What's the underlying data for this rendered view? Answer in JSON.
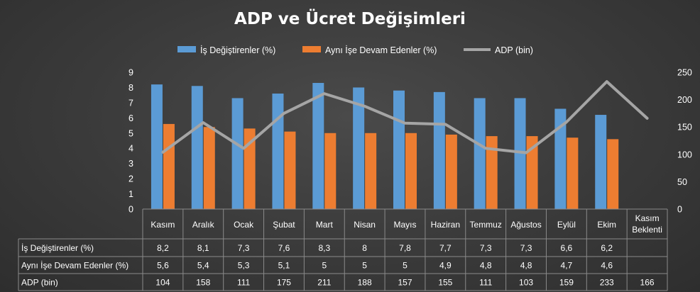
{
  "chart_data": {
    "type": "bar",
    "title": "ADP ve Ücret Değişimleri",
    "categories": [
      "Kasım",
      "Aralık",
      "Ocak",
      "Şubat",
      "Mart",
      "Nisan",
      "Mayıs",
      "Haziran",
      "Temmuz",
      "Ağustos",
      "Eylül",
      "Ekim",
      "Kasım Beklenti"
    ],
    "series": [
      {
        "name": "İş Değiştirenler (%)",
        "type": "bar",
        "axis": "left",
        "color": "#5b9bd5",
        "values": [
          8.2,
          8.1,
          7.3,
          7.6,
          8.3,
          8,
          7.8,
          7.7,
          7.3,
          7.3,
          6.6,
          6.2,
          null
        ],
        "labels": [
          "8,2",
          "8,1",
          "7,3",
          "7,6",
          "8,3",
          "8",
          "7,8",
          "7,7",
          "7,3",
          "7,3",
          "6,6",
          "6,2",
          ""
        ]
      },
      {
        "name": "Aynı İşe Devam Edenler (%)",
        "type": "bar",
        "axis": "left",
        "color": "#ed7d31",
        "values": [
          5.6,
          5.4,
          5.3,
          5.1,
          5,
          5,
          5,
          4.9,
          4.8,
          4.8,
          4.7,
          4.6,
          null
        ],
        "labels": [
          "5,6",
          "5,4",
          "5,3",
          "5,1",
          "5",
          "5",
          "5",
          "4,9",
          "4,8",
          "4,8",
          "4,7",
          "4,6",
          ""
        ]
      },
      {
        "name": "ADP (bin)",
        "type": "line",
        "axis": "right",
        "color": "#a5a5a5",
        "values": [
          104,
          158,
          111,
          175,
          211,
          188,
          157,
          155,
          111,
          103,
          159,
          233,
          166
        ],
        "labels": [
          "104",
          "158",
          "111",
          "175",
          "211",
          "188",
          "157",
          "155",
          "111",
          "103",
          "159",
          "233",
          "166"
        ]
      }
    ],
    "left_axis": {
      "ylim": [
        0,
        9
      ],
      "ticks": [
        "0",
        "1",
        "2",
        "3",
        "4",
        "5",
        "6",
        "7",
        "8",
        "9"
      ]
    },
    "right_axis": {
      "ylim": [
        0,
        250
      ],
      "ticks": [
        "0",
        "50",
        "100",
        "150",
        "200",
        "250"
      ]
    },
    "legend_position": "top",
    "grid": false,
    "data_table": true,
    "text_color": "#ffffff",
    "table_line_color": "#8a8a8a"
  }
}
